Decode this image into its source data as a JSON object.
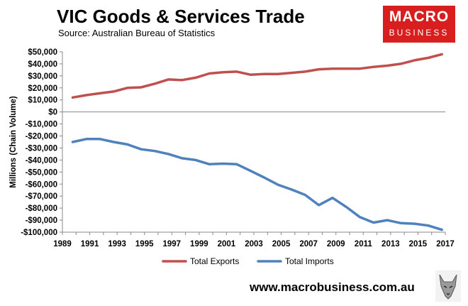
{
  "header": {
    "title": "VIC Goods & Services Trade",
    "source": "Source:  Australian Bureau of Statistics"
  },
  "logo": {
    "line1": "MACRO",
    "line2": "BUSINESS",
    "color": "#d81e1e"
  },
  "footer": {
    "url": "www.macrobusiness.com.au"
  },
  "chart_data": {
    "type": "line",
    "title": "VIC Goods & Services Trade",
    "xlabel": "",
    "ylabel": "Millions (Chain Volume)",
    "xlim": [
      1989,
      2017
    ],
    "ylim": [
      -100000,
      50000
    ],
    "x_ticks": [
      1989,
      1991,
      1993,
      1995,
      1997,
      1999,
      2001,
      2003,
      2005,
      2007,
      2009,
      2011,
      2013,
      2015,
      2017
    ],
    "y_ticks": [
      50000,
      40000,
      30000,
      20000,
      10000,
      0,
      -10000,
      -20000,
      -30000,
      -40000,
      -50000,
      -60000,
      -70000,
      -80000,
      -90000,
      -100000
    ],
    "y_tick_labels": [
      "$50,000",
      "$40,000",
      "$30,000",
      "$20,000",
      "$10,000",
      "$0",
      "-$10,000",
      "-$20,000",
      "-$30,000",
      "-$40,000",
      "-$50,000",
      "-$60,000",
      "-$70,000",
      "-$80,000",
      "-$90,000",
      "-$100,000"
    ],
    "grid": false,
    "legend_position": "bottom",
    "x": [
      1989.75,
      1990.75,
      1991.75,
      1992.75,
      1993.75,
      1994.75,
      1995.75,
      1996.75,
      1997.75,
      1998.75,
      1999.75,
      2000.75,
      2001.75,
      2002.75,
      2003.75,
      2004.75,
      2005.75,
      2006.75,
      2007.75,
      2008.75,
      2009.75,
      2010.75,
      2011.75,
      2012.75,
      2013.75,
      2014.75,
      2015.75,
      2016.75
    ],
    "series": [
      {
        "name": "Total Exports",
        "color": "#c0504d",
        "values": [
          12000,
          14000,
          15500,
          17000,
          20000,
          20500,
          23500,
          27000,
          26500,
          28500,
          32000,
          33000,
          33500,
          31000,
          31500,
          31500,
          32500,
          33500,
          35500,
          36000,
          36000,
          36000,
          37500,
          38500,
          40000,
          43000,
          45000,
          48000
        ]
      },
      {
        "name": "Total Imports",
        "color": "#4f81bd",
        "values": [
          -25000,
          -22500,
          -22500,
          -25000,
          -27000,
          -31000,
          -32500,
          -35000,
          -38500,
          -40000,
          -43500,
          -43000,
          -43500,
          -49000,
          -54500,
          -60500,
          -64500,
          -69000,
          -77500,
          -71500,
          -79000,
          -87500,
          -92000,
          -90000,
          -92500,
          -93000,
          -94500,
          -98000
        ]
      }
    ]
  }
}
